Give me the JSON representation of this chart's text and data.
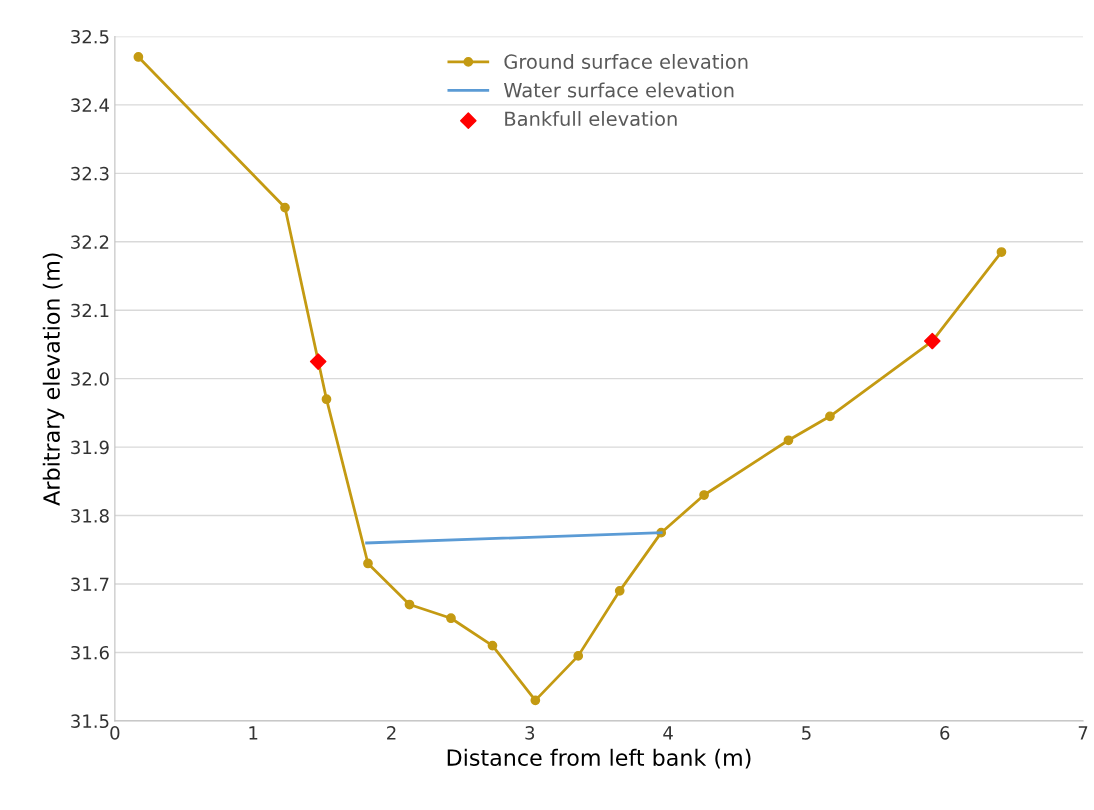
{
  "chart_data": {
    "type": "line",
    "xlabel": "Distance from left bank (m)",
    "ylabel": "Arbitrary elevation (m)",
    "xlim": [
      0,
      7
    ],
    "xticks": [
      0,
      1,
      2,
      3,
      4,
      5,
      6,
      7
    ],
    "ylim": [
      31.5,
      32.5
    ],
    "yticks": [
      {
        "value": 31.5,
        "label": "31.5"
      },
      {
        "value": 31.6,
        "label": "31.6"
      },
      {
        "value": 31.7,
        "label": "31.7"
      },
      {
        "value": 31.8,
        "label": "31.8"
      },
      {
        "value": 31.9,
        "label": "31.9"
      },
      {
        "value": 32.0,
        "label": "32.0"
      },
      {
        "value": 32.1,
        "label": "32.1"
      },
      {
        "value": 32.2,
        "label": "32.2"
      },
      {
        "value": 32.3,
        "label": "32.3"
      },
      {
        "value": 32.4,
        "label": "32.4"
      },
      {
        "value": 32.5,
        "label": "32.5"
      }
    ],
    "grid": "y",
    "legend": "top",
    "series": [
      {
        "name": "Ground surface elevation",
        "marker": "circle",
        "color": "#c49a12",
        "x": [
          0.17,
          1.23,
          1.53,
          1.83,
          2.13,
          2.43,
          2.73,
          3.04,
          3.35,
          3.65,
          3.95,
          4.26,
          4.87,
          5.17,
          5.91,
          6.41
        ],
        "values": [
          32.47,
          32.25,
          31.97,
          31.73,
          31.67,
          31.65,
          31.61,
          31.53,
          31.595,
          31.69,
          31.775,
          31.83,
          31.91,
          31.945,
          32.055,
          32.185
        ]
      },
      {
        "name": "Water surface elevation",
        "marker": "none",
        "color": "#5b9bd5",
        "x": [
          1.82,
          3.95
        ],
        "values": [
          31.76,
          31.775
        ]
      },
      {
        "name": "Bankfull elevation",
        "type": "scatter",
        "marker": "diamond",
        "color": "#ff0000",
        "x": [
          1.47,
          5.91
        ],
        "values": [
          32.025,
          32.055
        ]
      }
    ]
  }
}
